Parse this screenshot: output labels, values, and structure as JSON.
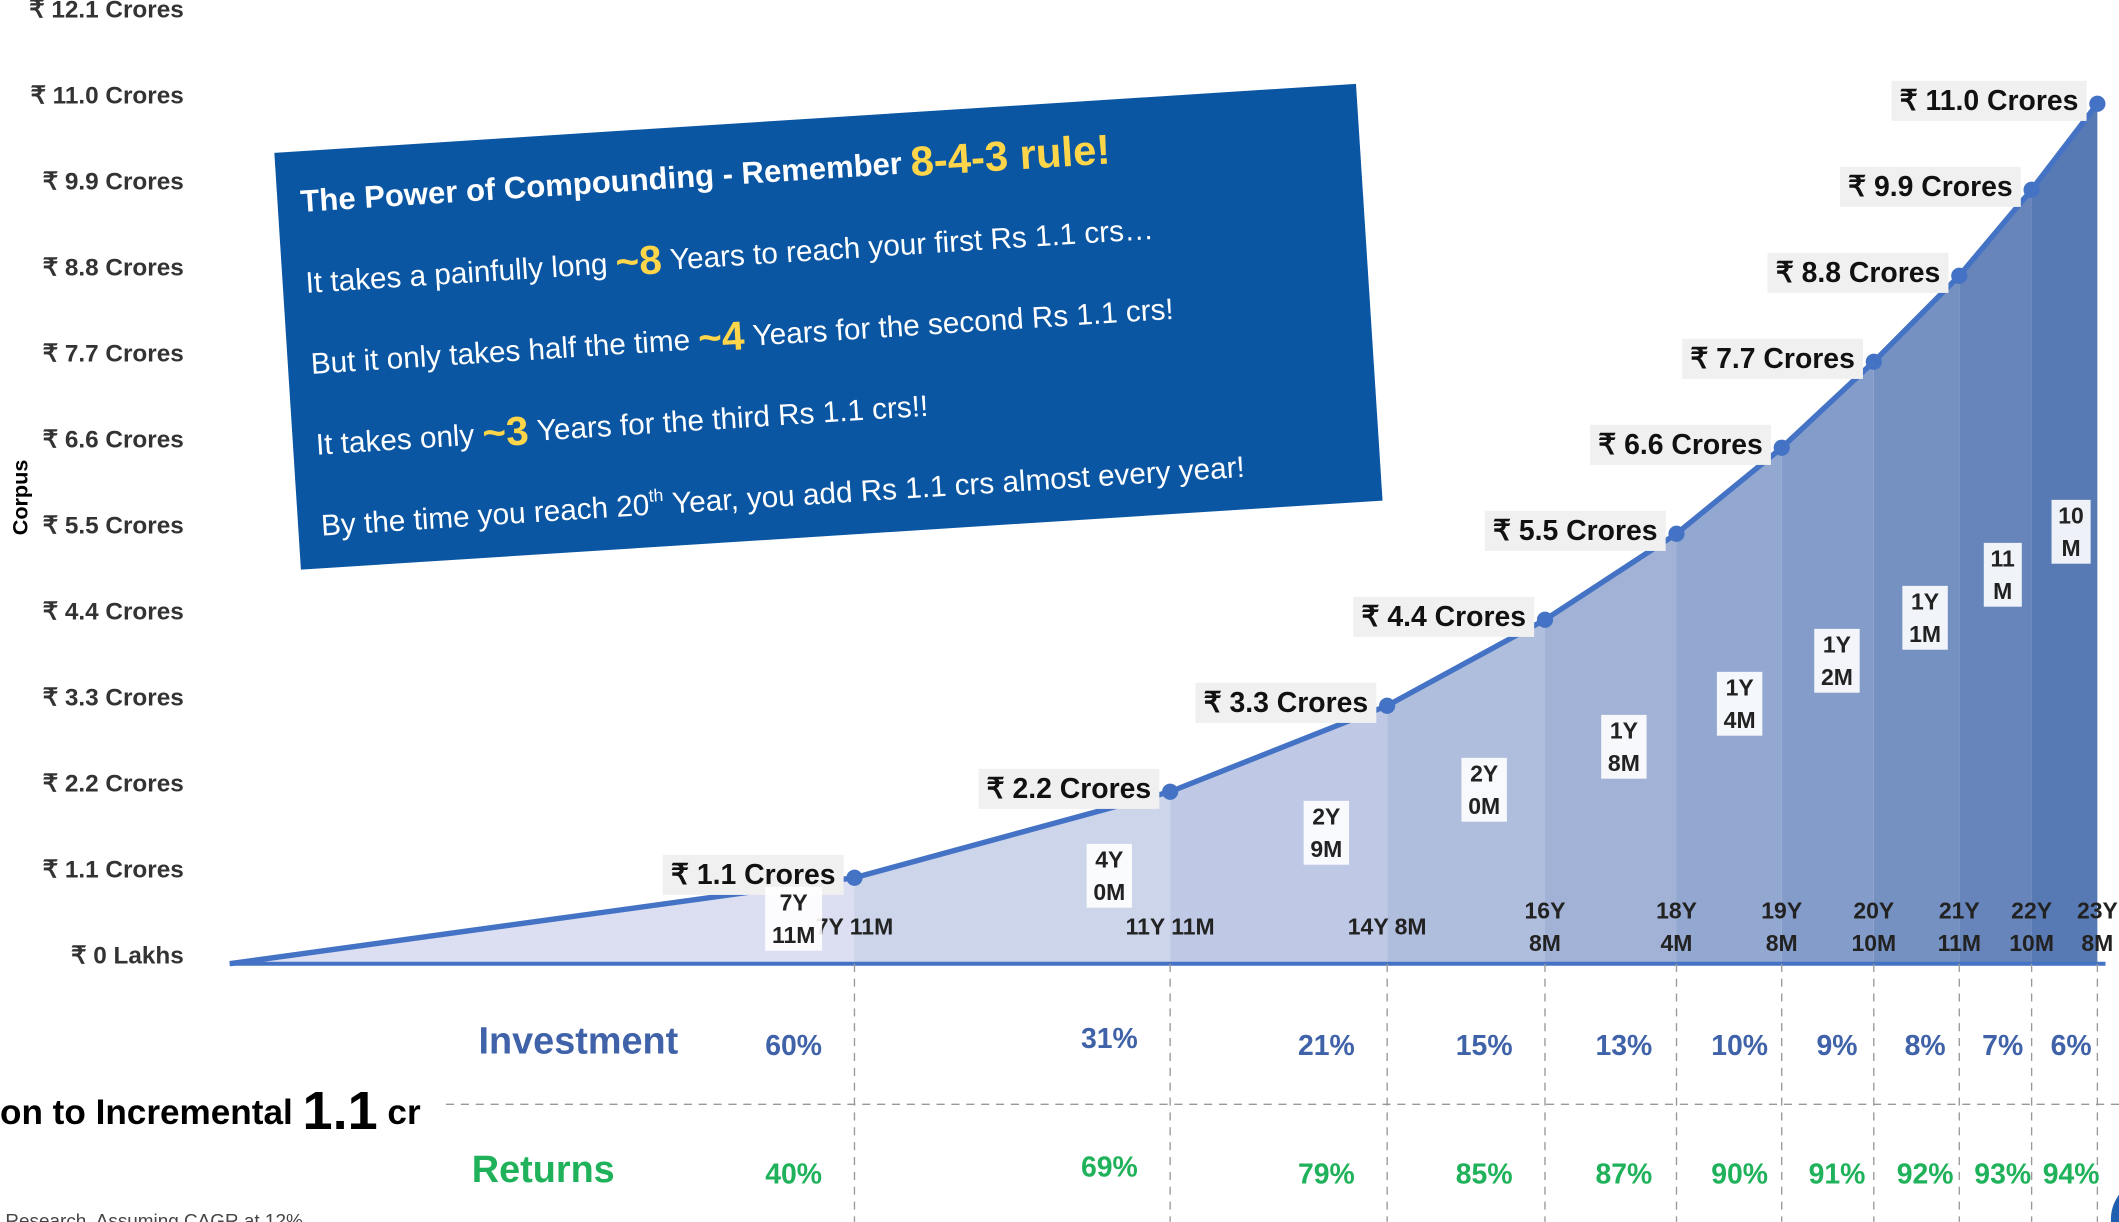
{
  "chart_data": {
    "type": "area",
    "y_label": "Corpus",
    "ylim": [
      0,
      12.1
    ],
    "yticks": [
      {
        "value": 0,
        "label": "₹ 0 Lakhs"
      },
      {
        "value": 1.1,
        "label": "₹ 1.1 Crores"
      },
      {
        "value": 2.2,
        "label": "₹ 2.2 Crores"
      },
      {
        "value": 3.3,
        "label": "₹ 3.3 Crores"
      },
      {
        "value": 4.4,
        "label": "₹ 4.4 Crores"
      },
      {
        "value": 5.5,
        "label": "₹ 5.5 Crores"
      },
      {
        "value": 6.6,
        "label": "₹ 6.6 Crores"
      },
      {
        "value": 7.7,
        "label": "₹ 7.7 Crores"
      },
      {
        "value": 8.8,
        "label": "₹ 8.8 Crores"
      },
      {
        "value": 9.9,
        "label": "₹ 9.9 Crores"
      },
      {
        "value": 11.0,
        "label": "₹ 11.0 Crores"
      },
      {
        "value": 12.1,
        "label": "₹ 12.1 Crores"
      }
    ],
    "xlim": [
      0,
      284
    ],
    "x": [
      "7Y 11M",
      "11Y 11M",
      "14Y 8M",
      "16Y 8M",
      "18Y 4M",
      "19Y 8M",
      "20Y 10M",
      "21Y 11M",
      "22Y 10M",
      "23Y 8M"
    ],
    "values": [
      1.1,
      2.2,
      3.3,
      4.4,
      5.5,
      6.6,
      7.7,
      8.8,
      9.9,
      11.0
    ],
    "value_labels": [
      "₹ 1.1 Crores",
      "₹ 2.2 Crores",
      "₹ 3.3 Crores",
      "₹ 4.4 Crores",
      "₹ 5.5 Crores",
      "₹ 6.6 Crores",
      "₹ 7.7 Crores",
      "₹ 8.8 Crores",
      "₹ 9.9 Crores",
      "₹ 11.0 Crores"
    ],
    "color": "#4472c4",
    "interval_labels": [
      "7Y 11M",
      "4Y 0M",
      "2Y 9M",
      "2Y 0M",
      "1Y 8M",
      "1Y 4M",
      "1Y 2M",
      "1Y 1M",
      "11 M",
      "10 M"
    ],
    "table": [
      {
        "name": "Investment",
        "color": "#3f62a8",
        "values": [
          60,
          31,
          21,
          15,
          13,
          10,
          9,
          8,
          7,
          6
        ],
        "value_labels": [
          "60%",
          "31%",
          "21%",
          "15%",
          "13%",
          "10%",
          "9%",
          "8%",
          "7%",
          "6%"
        ]
      },
      {
        "name": "Returns",
        "color": "#1fb25a",
        "values": [
          40,
          69,
          79,
          85,
          87,
          90,
          91,
          92,
          93,
          94
        ],
        "value_labels": [
          "40%",
          "69%",
          "79%",
          "85%",
          "87%",
          "90%",
          "91%",
          "92%",
          "93%",
          "94%"
        ]
      }
    ],
    "side_title": [
      "on to Incremental",
      "1.1",
      "cr"
    ],
    "footnote": "Research. Assuming CAGR at 12%",
    "callout": {
      "title": "The Power of Compounding - Remember",
      "title_mark": "8-4-3 rule!",
      "lines": [
        {
          "before": "It takes a painfully long",
          "mark": "~8",
          "after": "Years to reach your first Rs 1.1 crs…"
        },
        {
          "before": "But it only takes half the time",
          "mark": "~4",
          "after": "Years for the second Rs 1.1 crs!"
        },
        {
          "before": "It takes only",
          "mark": "~3",
          "after": "Years for the third Rs 1.1 crs!!"
        },
        {
          "before": "By the time you reach 20",
          "sup": "th",
          "after": "Year, you add Rs 1.1 crs almost every year!"
        }
      ]
    }
  }
}
